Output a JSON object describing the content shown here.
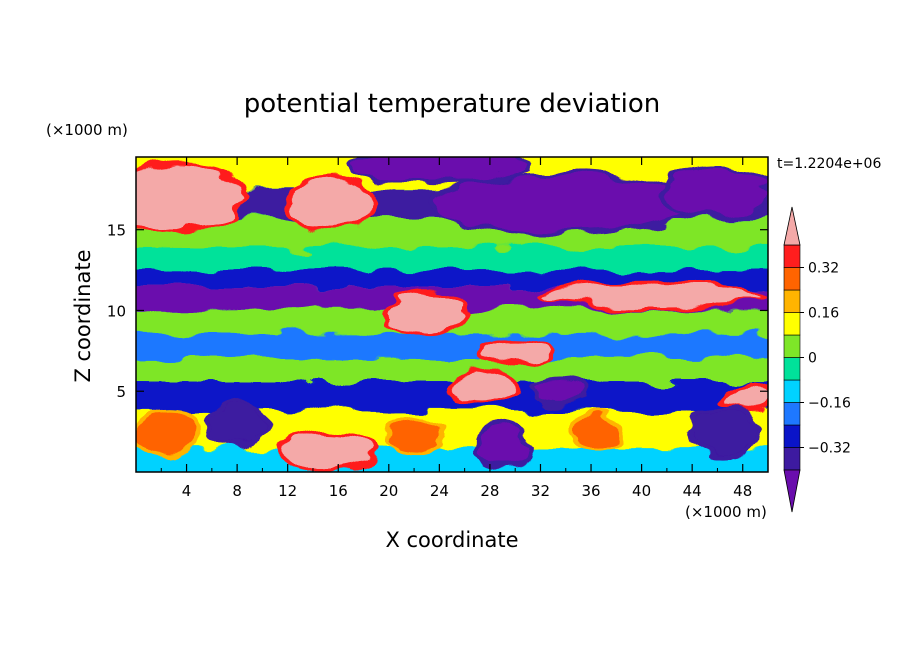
{
  "chart_data": {
    "type": "heatmap",
    "title": "potential temperature deviation",
    "xlabel": "X coordinate",
    "ylabel": "Z coordinate",
    "x_unit_label": "(×1000 m)",
    "y_unit_label": "(×1000 m)",
    "time_label": "t=1.2204e+06",
    "xlim": [
      0,
      50
    ],
    "ylim": [
      0,
      19.5
    ],
    "x_ticks": [
      4,
      8,
      12,
      16,
      20,
      24,
      28,
      32,
      36,
      40,
      44,
      48
    ],
    "y_ticks": [
      5,
      10,
      15
    ],
    "colorbar": {
      "levels": [
        -0.4,
        -0.32,
        -0.24,
        -0.16,
        -0.08,
        0,
        0.08,
        0.16,
        0.24,
        0.32,
        0.4
      ],
      "labels": [
        "0.32",
        "0.16",
        "0",
        "−0.16",
        "−0.32"
      ],
      "label_values": [
        0.32,
        0.16,
        0,
        -0.16,
        -0.32
      ],
      "colors": [
        "#6a0dad",
        "#3d1aa0",
        "#0a14c8",
        "#1e78ff",
        "#00d2ff",
        "#00e29a",
        "#7ee628",
        "#ffff00",
        "#ffb400",
        "#ff6400",
        "#ff1e1e",
        "#f4a9a8"
      ],
      "extend": "both"
    },
    "bands": [
      {
        "z": 18.5,
        "value": 0.1
      },
      {
        "z": 16.5,
        "value": -0.35
      },
      {
        "z": 14.8,
        "value": 0.05
      },
      {
        "z": 13.0,
        "value": -0.05
      },
      {
        "z": 12.0,
        "value": -0.3
      },
      {
        "z": 10.9,
        "value": -0.45
      },
      {
        "z": 9.3,
        "value": 0.05
      },
      {
        "z": 7.8,
        "value": -0.2
      },
      {
        "z": 6.2,
        "value": 0.0
      },
      {
        "z": 5.0,
        "value": -0.3
      },
      {
        "z": 2.5,
        "value": 0.15
      },
      {
        "z": 0.5,
        "value": -0.1
      }
    ],
    "features": [
      {
        "x": 3.5,
        "z": 17.0,
        "rx": 5.0,
        "rz": 1.9,
        "value": 0.45
      },
      {
        "x": 15.5,
        "z": 16.6,
        "rx": 3.2,
        "rz": 1.5,
        "value": 0.45
      },
      {
        "x": 33.5,
        "z": 16.6,
        "rx": 10.0,
        "rz": 1.7,
        "value": -0.45
      },
      {
        "x": 46.0,
        "z": 17.3,
        "rx": 4.0,
        "rz": 1.4,
        "value": -0.45
      },
      {
        "x": 24.0,
        "z": 18.9,
        "rx": 7.0,
        "rz": 0.8,
        "value": -0.45
      },
      {
        "x": 41.0,
        "z": 11.0,
        "rx": 8.5,
        "rz": 0.6,
        "value": 0.45
      },
      {
        "x": 23.0,
        "z": 9.8,
        "rx": 3.0,
        "rz": 1.2,
        "value": 0.45
      },
      {
        "x": 30.0,
        "z": 7.5,
        "rx": 2.5,
        "rz": 0.6,
        "value": 0.45
      },
      {
        "x": 27.5,
        "z": 5.3,
        "rx": 2.3,
        "rz": 0.9,
        "value": 0.45
      },
      {
        "x": 48.5,
        "z": 4.6,
        "rx": 1.8,
        "rz": 0.7,
        "value": 0.45
      },
      {
        "x": 15.0,
        "z": 1.2,
        "rx": 3.5,
        "rz": 1.1,
        "value": 0.45
      },
      {
        "x": 2.5,
        "z": 2.5,
        "rx": 2.2,
        "rz": 1.3,
        "value": 0.3
      },
      {
        "x": 22.0,
        "z": 2.2,
        "rx": 2.0,
        "rz": 1.0,
        "value": 0.3
      },
      {
        "x": 36.5,
        "z": 2.5,
        "rx": 1.5,
        "rz": 1.0,
        "value": 0.3
      },
      {
        "x": 8.0,
        "z": 3.0,
        "rx": 2.0,
        "rz": 1.3,
        "value": -0.4
      },
      {
        "x": 29.0,
        "z": 1.5,
        "rx": 2.0,
        "rz": 1.2,
        "value": -0.45
      },
      {
        "x": 46.5,
        "z": 2.5,
        "rx": 2.5,
        "rz": 1.3,
        "value": -0.4
      },
      {
        "x": 33.5,
        "z": 5.0,
        "rx": 2.0,
        "rz": 0.6,
        "value": -0.45
      }
    ]
  }
}
